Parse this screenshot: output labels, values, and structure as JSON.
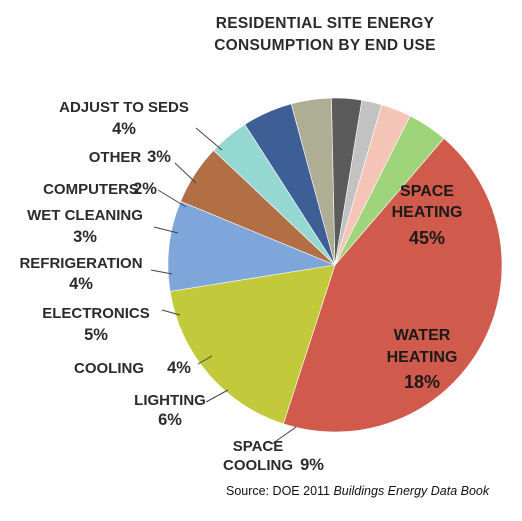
{
  "chart_data": {
    "type": "pie",
    "title": [
      "RESIDENTIAL SITE ENERGY",
      "CONSUMPTION BY END USE"
    ],
    "slices": [
      {
        "label": [
          "SPACE",
          "HEATING"
        ],
        "value": 45,
        "pct_label": "45%",
        "color": "#D05A4C"
      },
      {
        "label": [
          "WATER",
          "HEATING"
        ],
        "value": 18,
        "pct_label": "18%",
        "color": "#C2C93A"
      },
      {
        "label": [
          "SPACE",
          "COOLING"
        ],
        "value": 9,
        "pct_label": "9%",
        "color": "#7FA6DB"
      },
      {
        "label": [
          "LIGHTING"
        ],
        "value": 6,
        "pct_label": "6%",
        "color": "#B26F45"
      },
      {
        "label": [
          "COOLING"
        ],
        "value": 4,
        "pct_label": "4%",
        "color": "#95D8D2"
      },
      {
        "label": [
          "ELECTRONICS"
        ],
        "value": 5,
        "pct_label": "5%",
        "color": "#3E5F96"
      },
      {
        "label": [
          "REFRIGERATION"
        ],
        "value": 4,
        "pct_label": "4%",
        "color": "#AEAE94"
      },
      {
        "label": [
          "WET CLEANING"
        ],
        "value": 3,
        "pct_label": "3%",
        "color": "#5B5B5B"
      },
      {
        "label": [
          "COMPUTERS"
        ],
        "value": 2,
        "pct_label": "2%",
        "color": "#C2C2C2"
      },
      {
        "label": [
          "OTHER"
        ],
        "value": 3,
        "pct_label": "3%",
        "color": "#F4C4B6"
      },
      {
        "label": [
          "ADJUST TO SEDS"
        ],
        "value": 4,
        "pct_label": "4%",
        "color": "#9FD47A"
      }
    ]
  },
  "source": {
    "prefix": "Source: DOE 2011 ",
    "italic": "Buildings Energy Data Book"
  }
}
